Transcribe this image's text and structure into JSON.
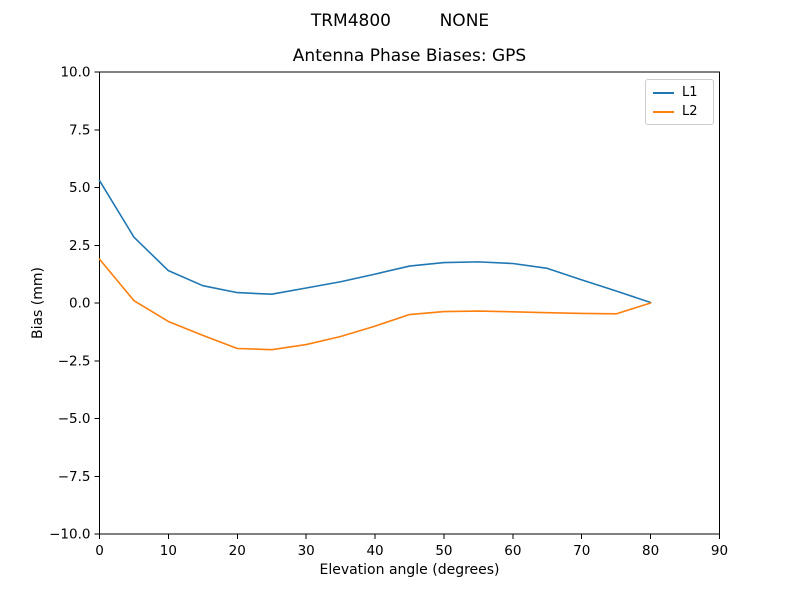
{
  "chart_data": {
    "type": "line",
    "suptitle": "TRM4800         NONE",
    "title": "Antenna Phase Biases: GPS",
    "xlabel": "Elevation angle (degrees)",
    "ylabel": "Bias (mm)",
    "xlim": [
      0,
      90
    ],
    "ylim": [
      -10,
      10
    ],
    "grid": false,
    "xtick_values": [
      0,
      10,
      20,
      30,
      40,
      50,
      60,
      70,
      80,
      90
    ],
    "xtick_labels": [
      "0",
      "10",
      "20",
      "30",
      "40",
      "50",
      "60",
      "70",
      "80",
      "90"
    ],
    "ytick_values": [
      10,
      7.5,
      5,
      2.5,
      0,
      -2.5,
      -5,
      -7.5,
      -10
    ],
    "ytick_labels": [
      "10.0",
      "7.5",
      "5.0",
      "2.5",
      "0.0",
      "−2.5",
      "−5.0",
      "−7.5",
      "−10.0"
    ],
    "x": [
      0,
      5,
      10,
      15,
      20,
      25,
      30,
      35,
      40,
      45,
      50,
      55,
      60,
      65,
      70,
      75,
      80
    ],
    "series": [
      {
        "name": "L1",
        "color": "#1f77b4",
        "values": [
          5.3,
          2.85,
          1.4,
          0.75,
          0.45,
          0.38,
          0.65,
          0.92,
          1.25,
          1.6,
          1.75,
          1.78,
          1.71,
          1.5,
          1.0,
          0.52,
          0.02
        ]
      },
      {
        "name": "L2",
        "color": "#ff7f0e",
        "values": [
          1.9,
          0.1,
          -0.8,
          -1.4,
          -1.97,
          -2.02,
          -1.8,
          -1.45,
          -1.0,
          -0.5,
          -0.37,
          -0.35,
          -0.38,
          -0.42,
          -0.45,
          -0.47,
          0.0
        ]
      }
    ],
    "legend": {
      "position": "upper right",
      "entries": [
        "L1",
        "L2"
      ]
    }
  }
}
